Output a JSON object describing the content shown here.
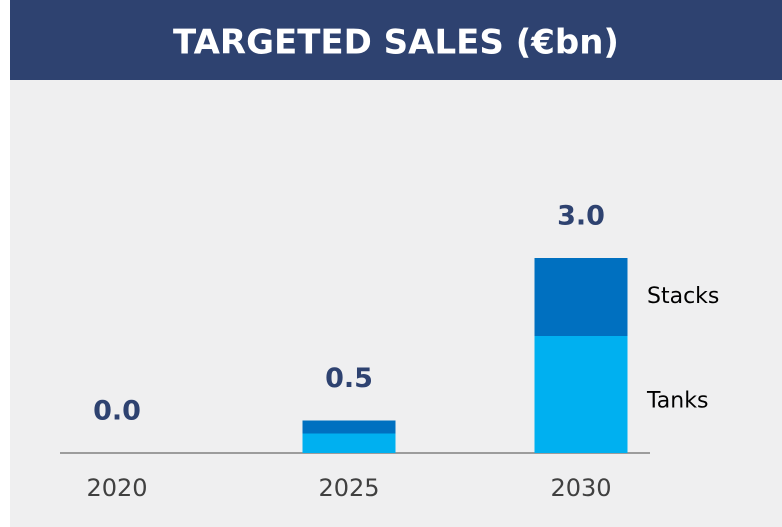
{
  "chart_data": {
    "type": "stacked_bar",
    "title": "TARGETED SALES (€bn)",
    "categories": [
      "2020",
      "2025",
      "2030"
    ],
    "series": [
      {
        "name": "Tanks",
        "color": "#00b0f0",
        "values": [
          0,
          0.3,
          1.8
        ]
      },
      {
        "name": "Stacks",
        "color": "#0070c0",
        "values": [
          0,
          0.2,
          1.2
        ]
      }
    ],
    "totals": [
      0,
      0.5,
      3.0
    ],
    "total_labels": [
      "0.0",
      "0.5",
      "3.0"
    ],
    "ylim": [
      0,
      3.6
    ]
  }
}
